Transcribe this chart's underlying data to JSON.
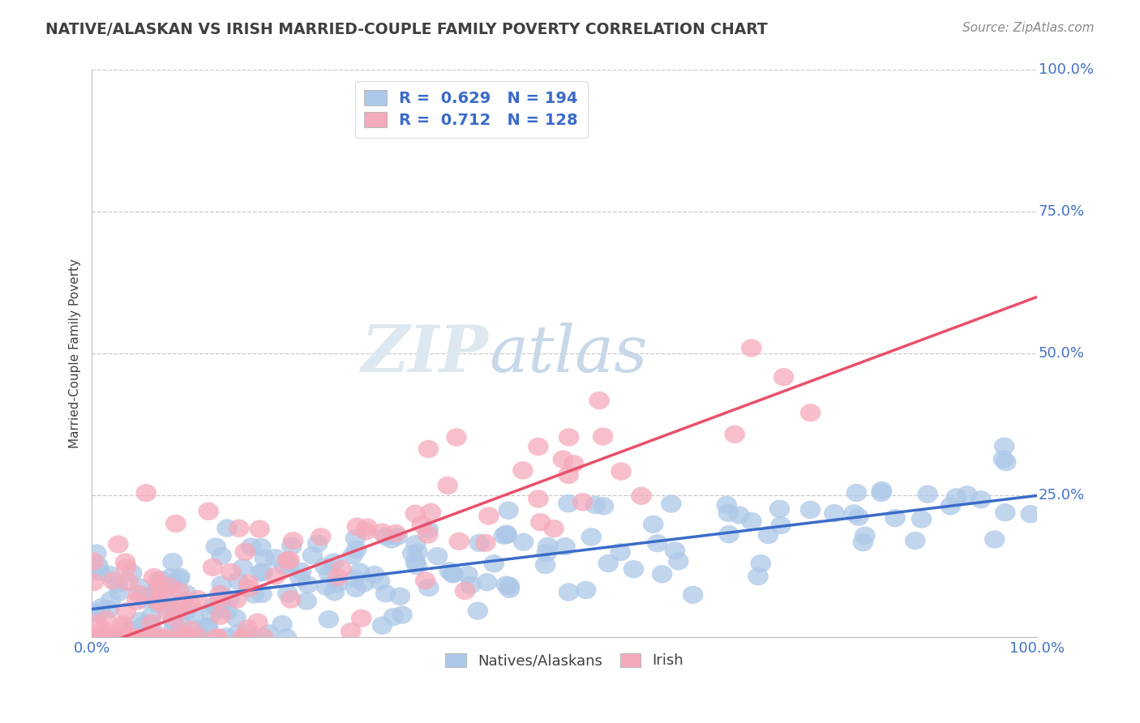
{
  "title": "NATIVE/ALASKAN VS IRISH MARRIED-COUPLE FAMILY POVERTY CORRELATION CHART",
  "source": "Source: ZipAtlas.com",
  "ylabel": "Married-Couple Family Poverty",
  "xlim": [
    0.0,
    1.0
  ],
  "ylim": [
    0.0,
    1.0
  ],
  "ytick_labels": [
    "25.0%",
    "50.0%",
    "75.0%",
    "100.0%"
  ],
  "ytick_positions": [
    0.25,
    0.5,
    0.75,
    1.0
  ],
  "native_R": 0.629,
  "native_N": 194,
  "irish_R": 0.712,
  "irish_N": 128,
  "native_color": "#adc8e8",
  "irish_color": "#f5aabb",
  "native_line_color": "#3a6bc8",
  "irish_line_color": "#e8506a",
  "watermark_zip": "ZIP",
  "watermark_atlas": "atlas",
  "background_color": "#ffffff",
  "grid_color": "#c8c8d0",
  "title_color": "#404040",
  "source_color": "#888888",
  "native_slope": 0.2,
  "native_intercept": 0.05,
  "irish_slope": 0.62,
  "irish_intercept": -0.02,
  "legend_border_color": "#dddddd",
  "tick_label_color": "#4472c4"
}
